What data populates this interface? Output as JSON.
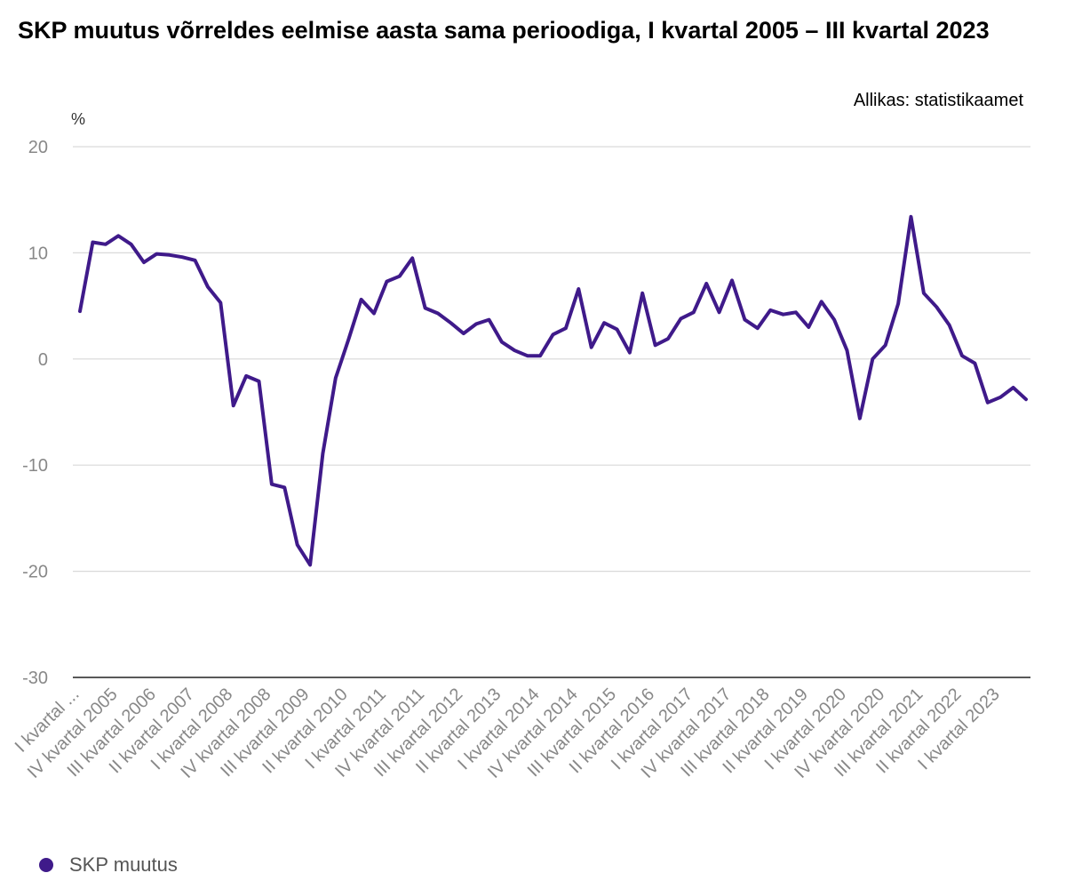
{
  "header": {
    "title": "SKP muutus võrreldes eelmise aasta sama perioodiga, I kvartal 2005 – III kvartal 2023",
    "source": "Allikas: statistikaamet",
    "unit": "%"
  },
  "colors": {
    "series": "#3f1a8a",
    "grid": "#d9d9d9",
    "axis": "#222222",
    "tick_text": "#888888"
  },
  "chart_data": {
    "type": "line",
    "ylim": [
      -30,
      20
    ],
    "yticks": [
      20,
      10,
      0,
      -10,
      -20,
      -30
    ],
    "grid": true,
    "legend_position": "bottom-left",
    "xtick_labels": [
      "I kvartal ...",
      "IV kvartal 2005",
      "III kvartal 2006",
      "II kvartal 2007",
      "I kvartal 2008",
      "IV kvartal 2008",
      "III kvartal 2009",
      "II kvartal 2010",
      "I kvartal 2011",
      "IV kvartal 2011",
      "III kvartal 2012",
      "II kvartal 2013",
      "I kvartal 2014",
      "IV kvartal 2014",
      "III kvartal 2015",
      "II kvartal 2016",
      "I kvartal 2017",
      "IV kvartal 2017",
      "III kvartal 2018",
      "II kvartal 2019",
      "I kvartal 2020",
      "IV kvartal 2020",
      "III kvartal 2021",
      "II kvartal 2022",
      "I kvartal 2023"
    ],
    "series": [
      {
        "name": "SKP muutus",
        "values": [
          4.5,
          11.0,
          10.8,
          11.6,
          10.8,
          9.1,
          9.9,
          9.8,
          9.6,
          9.3,
          6.8,
          5.3,
          -4.4,
          -1.6,
          -2.1,
          -11.8,
          -12.1,
          -17.5,
          -19.4,
          -8.9,
          -1.8,
          1.8,
          5.6,
          4.3,
          7.3,
          7.8,
          9.5,
          4.8,
          4.3,
          3.4,
          2.4,
          3.3,
          3.7,
          1.6,
          0.8,
          0.3,
          0.3,
          2.3,
          2.9,
          6.6,
          1.1,
          3.4,
          2.8,
          0.6,
          6.2,
          1.3,
          1.9,
          3.8,
          4.4,
          7.1,
          4.4,
          7.4,
          3.7,
          2.9,
          4.6,
          4.2,
          4.4,
          3.0,
          5.4,
          3.7,
          0.8,
          -5.6,
          0.0,
          1.3,
          5.2,
          13.4,
          6.2,
          4.9,
          3.2,
          0.3,
          -0.4,
          -4.1,
          -3.6,
          -2.7,
          -3.8
        ]
      }
    ]
  }
}
